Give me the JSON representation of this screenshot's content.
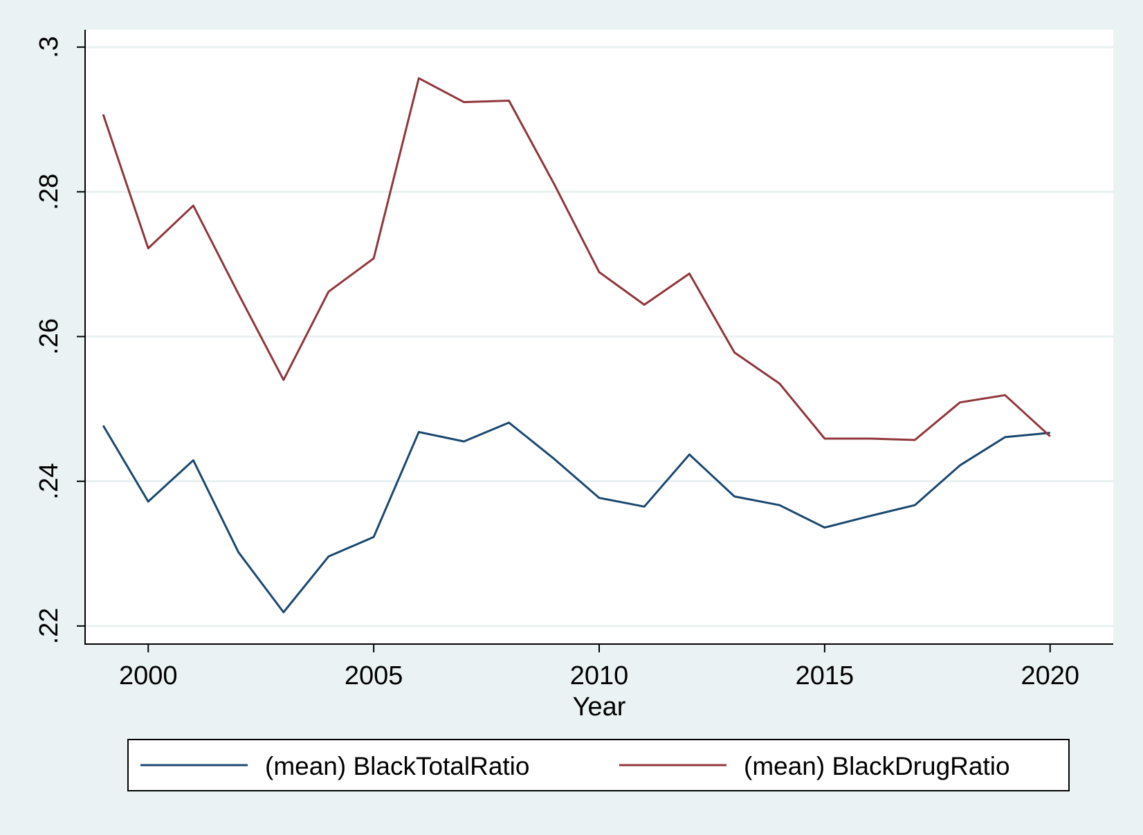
{
  "chart_data": {
    "type": "line",
    "title": "",
    "xlabel": "Year",
    "ylabel": "",
    "xlim": [
      1998.6,
      2021.4
    ],
    "ylim": [
      0.2175,
      0.3024
    ],
    "x_ticks": [
      2000,
      2005,
      2010,
      2015,
      2020
    ],
    "x_tick_labels": [
      "2000",
      "2005",
      "2010",
      "2015",
      "2020"
    ],
    "y_ticks": [
      0.22,
      0.24,
      0.26,
      0.28,
      0.3
    ],
    "y_tick_labels": [
      ".22",
      ".24",
      ".26",
      ".28",
      ".3"
    ],
    "grid": "horizontal",
    "legend_position": "bottom",
    "x": [
      1999,
      2000,
      2001,
      2002,
      2003,
      2004,
      2005,
      2006,
      2007,
      2008,
      2009,
      2010,
      2011,
      2012,
      2013,
      2014,
      2015,
      2016,
      2017,
      2018,
      2019,
      2020
    ],
    "series": [
      {
        "name": "(mean) BlackTotalRatio",
        "color": "#1a476f",
        "values": [
          0.2477,
          0.2372,
          0.2429,
          0.2302,
          0.2219,
          0.2296,
          0.2323,
          0.2468,
          0.2455,
          0.2481,
          0.2431,
          0.2377,
          0.2365,
          0.2437,
          0.2379,
          0.2367,
          0.2336,
          0.2352,
          0.2367,
          0.2422,
          0.2461,
          0.2467
        ]
      },
      {
        "name": "(mean) BlackDrugRatio",
        "color": "#90353b",
        "values": [
          0.2907,
          0.2722,
          0.2781,
          0.2659,
          0.254,
          0.2662,
          0.2708,
          0.2957,
          0.2924,
          0.2926,
          0.2811,
          0.2689,
          0.2644,
          0.2687,
          0.2578,
          0.2535,
          0.2459,
          0.2459,
          0.2457,
          0.2509,
          0.2519,
          0.2462
        ]
      }
    ]
  }
}
